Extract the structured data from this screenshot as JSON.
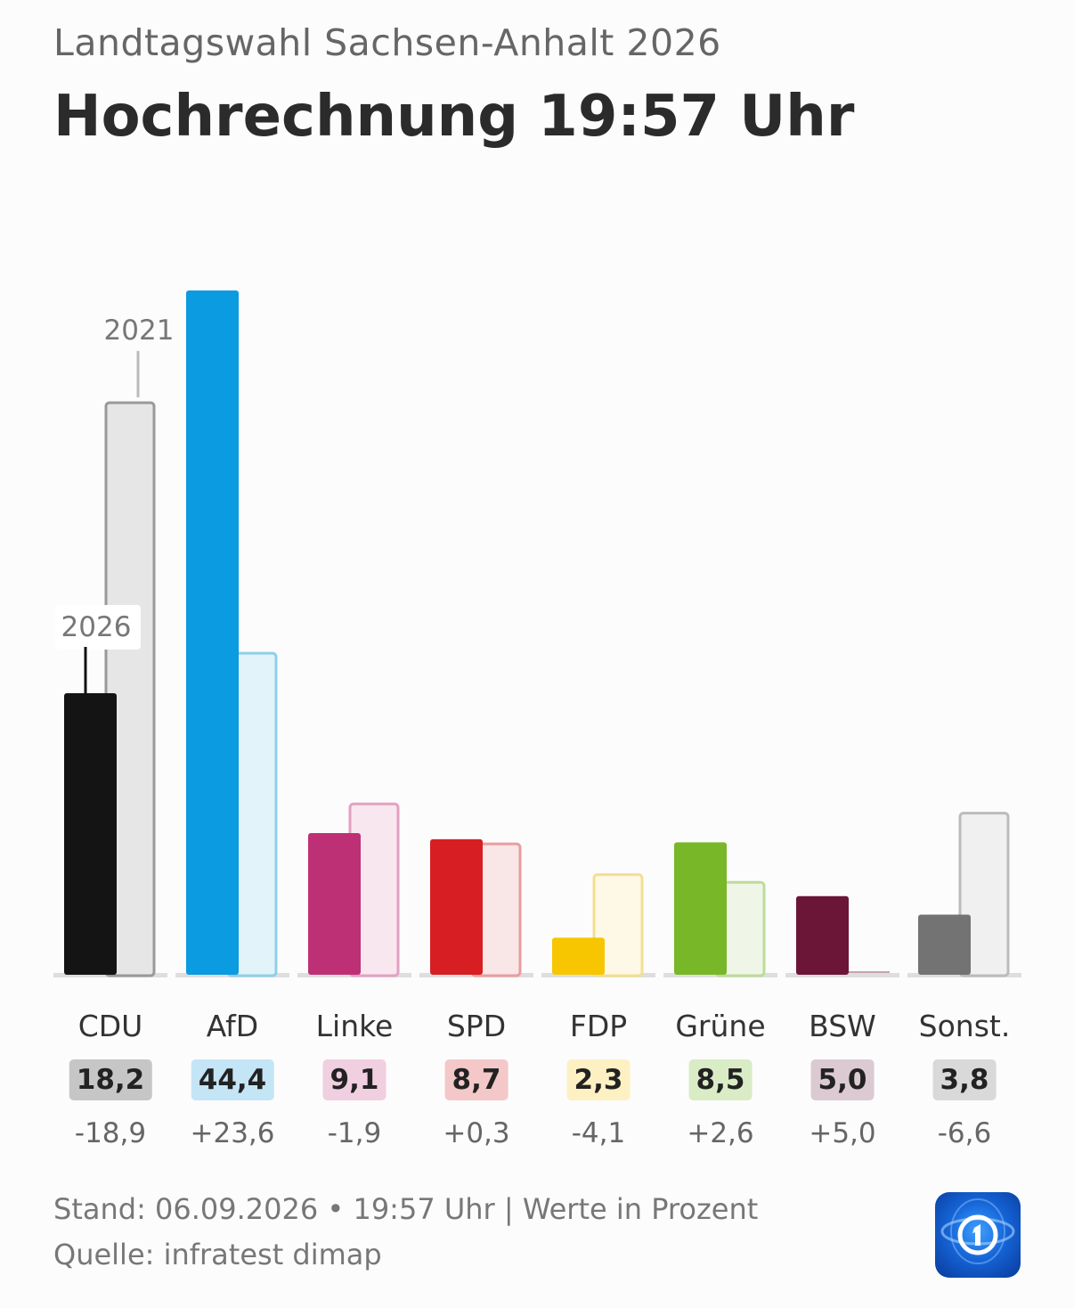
{
  "header": {
    "subtitle": "Landtagswahl Sachsen-Anhalt 2026",
    "title": "Hochrechnung 19:57 Uhr"
  },
  "chart_data": {
    "type": "bar",
    "title": "Hochrechnung 19:57 Uhr",
    "categories": [
      "CDU",
      "AfD",
      "Linke",
      "SPD",
      "FDP",
      "Grüne",
      "BSW",
      "Sonst."
    ],
    "series": [
      {
        "name": "2026",
        "values": [
          18.2,
          44.4,
          9.1,
          8.7,
          2.3,
          8.5,
          5.0,
          3.8
        ]
      },
      {
        "name": "2021",
        "values": [
          37.1,
          20.8,
          11.0,
          8.4,
          6.4,
          5.9,
          0.0,
          10.4
        ]
      }
    ],
    "value_labels": [
      "18,2",
      "44,4",
      "9,1",
      "8,7",
      "2,3",
      "8,5",
      "5,0",
      "3,8"
    ],
    "diff_labels": [
      "-18,9",
      "+23,6",
      "-1,9",
      "+0,3",
      "-4,1",
      "+2,6",
      "+5,0",
      "-6,6"
    ],
    "colors": [
      "#141414",
      "#0a9be0",
      "#be3075",
      "#d71e22",
      "#f7c600",
      "#78b727",
      "#6b1537",
      "#737373"
    ],
    "colors_prev": [
      "#e6e6e6",
      "#e2f3fa",
      "#f8e7ef",
      "#f9e6e6",
      "#fef9e6",
      "#eff6e7",
      "#f0e8eb",
      "#f0f0f0"
    ],
    "stroke_prev": [
      "#999999",
      "#8fcfe9",
      "#e3a1c1",
      "#ea9c9e",
      "#f3df90",
      "#bddc99",
      "#c7a2b1",
      "#bbbbbb"
    ],
    "badge_colors": [
      "#c6c6c6",
      "#c3e5f6",
      "#f0cfe0",
      "#f4c8c8",
      "#fdf0c3",
      "#d9ecc6",
      "#dccad2",
      "#d9d9d9"
    ],
    "series_labels": {
      "current": "2026",
      "previous": "2021"
    },
    "ylim": [
      0,
      45
    ],
    "grid": false
  },
  "footer": {
    "line1": "Stand: 06.09.2026 • 19:57 Uhr | Werte in Prozent",
    "line2": "Quelle: infratest dimap",
    "logo_icon": "tagesschau-logo-icon"
  }
}
